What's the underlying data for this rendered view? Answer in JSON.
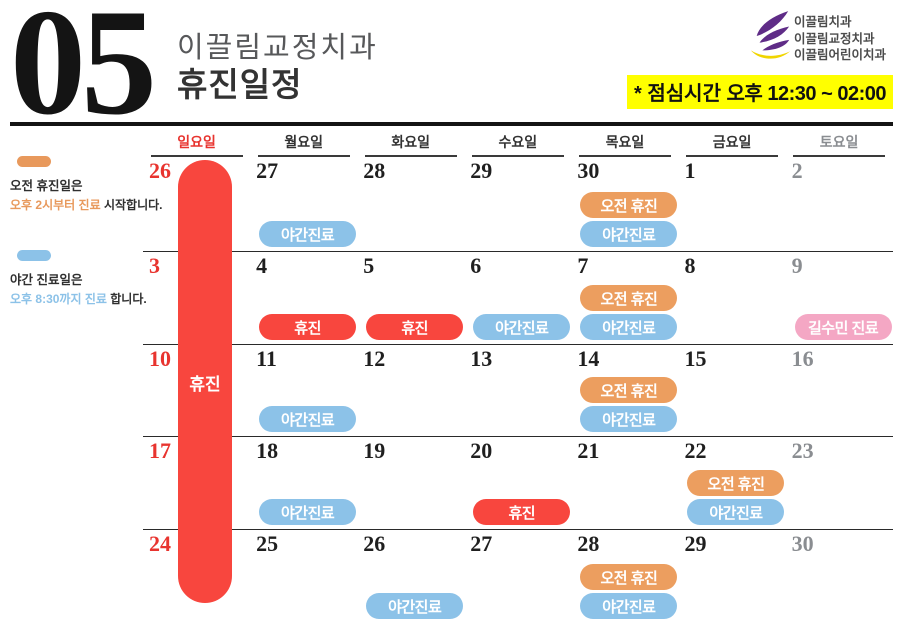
{
  "header": {
    "month_number": "05",
    "clinic_name": "이끌림교정치과",
    "title": "휴진일정",
    "logo": {
      "icon": "purple-wing-logo",
      "lines": [
        "이끌림치과",
        "이끌림교정치과",
        "이끌림어린이치과"
      ],
      "purple": "#5f2c87",
      "yellow": "#f0d500"
    },
    "lunch_notice": {
      "prefix": "* 점심시간 ",
      "time": "오후 12:30 ~ 02:00",
      "highlight": "#ffff00"
    }
  },
  "legend": [
    {
      "pill_color": "#e8995c",
      "accent": "#e8995c",
      "line1": "오전 휴진일은",
      "line2_colored": "오후 2시부터 진료",
      "line2_rest": " 시작합니다."
    },
    {
      "pill_color": "#8cc2e8",
      "accent": "#8cc2e8",
      "line1": "야간 진료일은",
      "line2_colored": "오후 8:30까지 진료",
      "line2_rest": " 합니다."
    }
  ],
  "calendar": {
    "day_headers": [
      {
        "label": "일요일",
        "color": "#e8342f"
      },
      {
        "label": "월요일",
        "color": "#333333"
      },
      {
        "label": "화요일",
        "color": "#333333"
      },
      {
        "label": "수요일",
        "color": "#333333"
      },
      {
        "label": "목요일",
        "color": "#333333"
      },
      {
        "label": "금요일",
        "color": "#333333"
      },
      {
        "label": "토요일",
        "color": "#8a8d91"
      }
    ],
    "date_colors": {
      "red": "#e8342f",
      "dark": "#1f1f1f",
      "gray": "#8a8d91"
    },
    "event_colors": {
      "night": "#8cc2e8",
      "morning": "#ec9e5f",
      "closed": "#f8463e",
      "special": "#f4a7c4"
    },
    "sunday_column": {
      "label": "휴진",
      "color": "#f8463e"
    },
    "weeks": [
      {
        "days": [
          {
            "date": "26",
            "color": "red"
          },
          {
            "date": "27",
            "color": "dark",
            "events": [
              {
                "label": "야간진료",
                "type": "night"
              }
            ]
          },
          {
            "date": "28",
            "color": "dark"
          },
          {
            "date": "29",
            "color": "dark"
          },
          {
            "date": "30",
            "color": "dark",
            "events": [
              {
                "label": "오전 휴진",
                "type": "morning"
              },
              {
                "label": "야간진료",
                "type": "night"
              }
            ]
          },
          {
            "date": "1",
            "color": "dark"
          },
          {
            "date": "2",
            "color": "gray"
          }
        ]
      },
      {
        "days": [
          {
            "date": "3",
            "color": "red"
          },
          {
            "date": "4",
            "color": "dark",
            "events": [
              {
                "label": "휴진",
                "type": "closed"
              }
            ]
          },
          {
            "date": "5",
            "color": "dark",
            "events": [
              {
                "label": "휴진",
                "type": "closed"
              }
            ]
          },
          {
            "date": "6",
            "color": "dark",
            "events": [
              {
                "label": "야간진료",
                "type": "night"
              }
            ]
          },
          {
            "date": "7",
            "color": "dark",
            "events": [
              {
                "label": "오전 휴진",
                "type": "morning"
              },
              {
                "label": "야간진료",
                "type": "night"
              }
            ]
          },
          {
            "date": "8",
            "color": "dark"
          },
          {
            "date": "9",
            "color": "gray",
            "events": [
              {
                "label": "길수민 진료",
                "type": "special"
              }
            ]
          }
        ]
      },
      {
        "days": [
          {
            "date": "10",
            "color": "red"
          },
          {
            "date": "11",
            "color": "dark",
            "events": [
              {
                "label": "야간진료",
                "type": "night"
              }
            ]
          },
          {
            "date": "12",
            "color": "dark"
          },
          {
            "date": "13",
            "color": "dark"
          },
          {
            "date": "14",
            "color": "dark",
            "events": [
              {
                "label": "오전 휴진",
                "type": "morning"
              },
              {
                "label": "야간진료",
                "type": "night"
              }
            ]
          },
          {
            "date": "15",
            "color": "dark"
          },
          {
            "date": "16",
            "color": "gray"
          }
        ]
      },
      {
        "days": [
          {
            "date": "17",
            "color": "red"
          },
          {
            "date": "18",
            "color": "dark",
            "events": [
              {
                "label": "야간진료",
                "type": "night"
              }
            ]
          },
          {
            "date": "19",
            "color": "dark"
          },
          {
            "date": "20",
            "color": "dark",
            "events": [
              {
                "label": "휴진",
                "type": "closed"
              }
            ]
          },
          {
            "date": "21",
            "color": "dark"
          },
          {
            "date": "22",
            "color": "dark",
            "events": [
              {
                "label": "오전 휴진",
                "type": "morning"
              },
              {
                "label": "야간진료",
                "type": "night"
              }
            ]
          },
          {
            "date": "23",
            "color": "gray"
          }
        ]
      },
      {
        "days": [
          {
            "date": "24",
            "color": "red"
          },
          {
            "date": "25",
            "color": "dark"
          },
          {
            "date": "26",
            "color": "dark",
            "events": [
              {
                "label": "야간진료",
                "type": "night"
              }
            ]
          },
          {
            "date": "27",
            "color": "dark"
          },
          {
            "date": "28",
            "color": "dark",
            "events": [
              {
                "label": "오전 휴진",
                "type": "morning"
              },
              {
                "label": "야간진료",
                "type": "night"
              }
            ]
          },
          {
            "date": "29",
            "color": "dark"
          },
          {
            "date": "30",
            "color": "gray"
          }
        ]
      }
    ]
  }
}
